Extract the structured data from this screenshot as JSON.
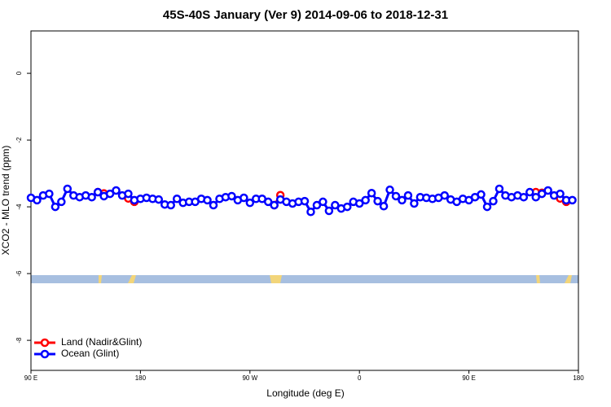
{
  "chart_data": {
    "type": "line",
    "title": "45S-40S January (Ver 9)   2014-09-06 to 2018-12-31",
    "x_label": "Longitude (deg E)",
    "y_label": "XCO2 - MLO trend (ppm)",
    "xlim": [
      90,
      540
    ],
    "ylim": [
      -8.9,
      1.27
    ],
    "xticks": [
      {
        "value": 90,
        "label": "90 E"
      },
      {
        "value": 180,
        "label": "180"
      },
      {
        "value": 270,
        "label": "90 W"
      },
      {
        "value": 360,
        "label": "0"
      },
      {
        "value": 450,
        "label": "90 E"
      },
      {
        "value": 540,
        "label": "180"
      }
    ],
    "yticks": [
      0,
      -2,
      -4,
      -6,
      -8
    ],
    "legend": "bottomleft",
    "x": [
      90,
      95,
      100,
      105,
      110,
      115,
      120,
      125,
      130,
      135,
      140,
      145,
      150,
      155,
      160,
      165,
      170,
      175,
      180,
      185,
      190,
      195,
      200,
      205,
      210,
      215,
      220,
      225,
      230,
      235,
      240,
      245,
      250,
      255,
      260,
      265,
      270,
      275,
      280,
      285,
      290,
      295,
      300,
      305,
      310,
      315,
      320,
      325,
      330,
      335,
      340,
      345,
      350,
      355,
      360,
      365,
      370,
      375,
      380,
      385,
      390,
      395,
      400,
      405,
      410,
      415,
      420,
      425,
      430,
      435,
      440,
      445,
      450,
      455,
      460,
      465,
      470,
      475,
      480,
      485,
      490,
      495,
      500,
      505,
      510,
      515,
      520,
      525,
      530,
      535
    ],
    "series": [
      {
        "name": "Land (Nadir&Glint)",
        "color": "#ff0000",
        "values": [
          null,
          null,
          null,
          null,
          null,
          null,
          null,
          null,
          null,
          null,
          null,
          -3.56,
          -3.6,
          null,
          null,
          null,
          -3.75,
          -3.85,
          null,
          null,
          null,
          null,
          null,
          null,
          null,
          null,
          null,
          null,
          null,
          null,
          null,
          null,
          null,
          null,
          null,
          null,
          null,
          null,
          null,
          null,
          -3.95,
          -3.65,
          null,
          null,
          null,
          null,
          null,
          null,
          null,
          null,
          null,
          null,
          null,
          null,
          null,
          null,
          null,
          null,
          null,
          null,
          null,
          null,
          null,
          null,
          null,
          null,
          null,
          null,
          null,
          null,
          null,
          null,
          null,
          null,
          null,
          null,
          null,
          null,
          null,
          null,
          null,
          null,
          null,
          -3.56,
          -3.58,
          null,
          null,
          -3.75,
          -3.85,
          null
        ]
      },
      {
        "name": "Ocean (Glint)",
        "color": "#0000ff",
        "values": [
          -3.73,
          -3.8,
          -3.66,
          -3.61,
          -4.0,
          -3.85,
          -3.46,
          -3.66,
          -3.71,
          -3.66,
          -3.71,
          -3.56,
          -3.68,
          -3.61,
          -3.51,
          -3.66,
          -3.61,
          -3.8,
          -3.76,
          -3.73,
          -3.76,
          -3.78,
          -3.93,
          -3.95,
          -3.76,
          -3.88,
          -3.85,
          -3.85,
          -3.76,
          -3.8,
          -3.95,
          -3.76,
          -3.71,
          -3.68,
          -3.8,
          -3.73,
          -3.88,
          -3.76,
          -3.76,
          -3.85,
          -3.95,
          -3.78,
          -3.85,
          -3.9,
          -3.85,
          -3.83,
          -4.15,
          -3.95,
          -3.85,
          -4.12,
          -3.95,
          -4.05,
          -4.0,
          -3.85,
          -3.9,
          -3.8,
          -3.59,
          -3.83,
          -3.98,
          -3.49,
          -3.68,
          -3.8,
          -3.66,
          -3.9,
          -3.71,
          -3.73,
          -3.76,
          -3.73,
          -3.66,
          -3.78,
          -3.85,
          -3.76,
          -3.8,
          -3.71,
          -3.63,
          -4.0,
          -3.83,
          -3.46,
          -3.66,
          -3.71,
          -3.66,
          -3.71,
          -3.56,
          -3.71,
          -3.61,
          -3.51,
          -3.66,
          -3.61,
          -3.8,
          -3.8
        ]
      }
    ]
  }
}
